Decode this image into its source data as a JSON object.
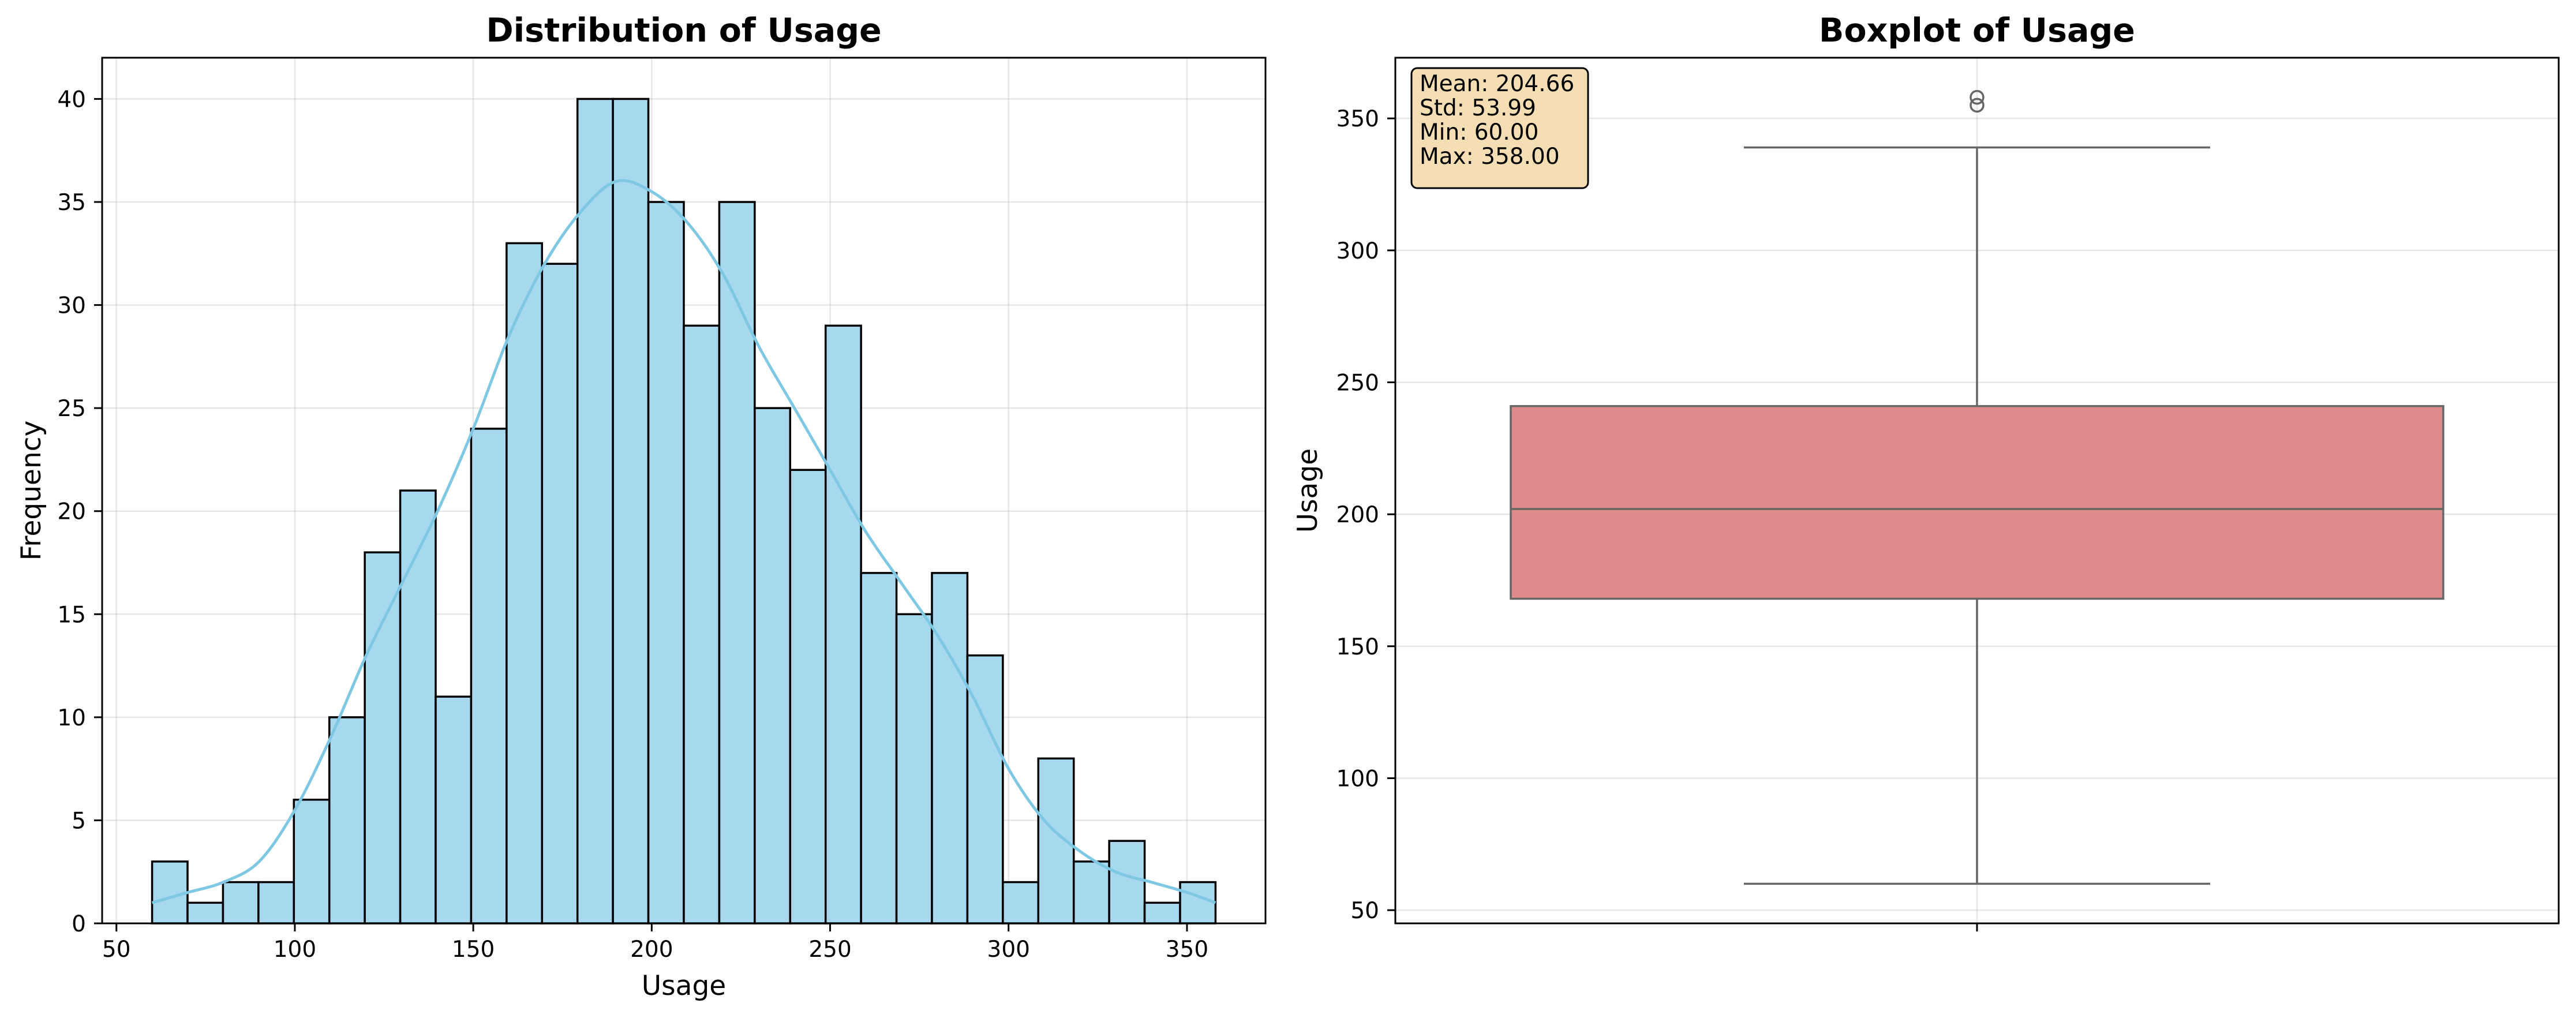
{
  "chart_data": [
    {
      "type": "histogram",
      "title": "Distribution of Usage",
      "xlabel": "Usage",
      "ylabel": "Frequency",
      "xlim": [
        46,
        372
      ],
      "ylim": [
        0,
        42
      ],
      "xticks": [
        50,
        100,
        150,
        200,
        250,
        300,
        350
      ],
      "yticks": [
        0,
        5,
        10,
        15,
        20,
        25,
        30,
        35,
        40
      ],
      "grid": true,
      "bar_color": "#a8d8ee",
      "edge_color": "#000000",
      "kde_color": "#7ec8e3",
      "bin_start": 60,
      "bin_width": 9.9333,
      "counts": [
        3,
        1,
        2,
        2,
        6,
        10,
        18,
        21,
        11,
        24,
        33,
        32,
        40,
        40,
        35,
        29,
        35,
        25,
        22,
        29,
        17,
        15,
        17,
        13,
        2,
        8,
        3,
        4,
        1,
        2
      ],
      "kde": {
        "x": [
          60,
          70,
          80,
          90,
          100,
          110,
          120,
          130,
          140,
          150,
          160,
          170,
          180,
          190,
          200,
          210,
          220,
          230,
          240,
          250,
          260,
          270,
          280,
          290,
          300,
          310,
          320,
          330,
          340,
          350,
          358
        ],
        "y": [
          1.0,
          1.5,
          2.0,
          3.0,
          5.5,
          9.0,
          13.0,
          16.5,
          20.0,
          24.0,
          28.5,
          32.0,
          34.5,
          36.0,
          35.5,
          34.0,
          31.5,
          28.0,
          25.0,
          22.0,
          19.0,
          16.5,
          14.0,
          11.0,
          7.5,
          5.0,
          3.5,
          2.5,
          2.0,
          1.5,
          1.0
        ]
      }
    },
    {
      "type": "boxplot",
      "title": "Boxplot of Usage",
      "xlabel": "",
      "ylabel": "Usage",
      "ylim": [
        45,
        373
      ],
      "yticks": [
        50,
        100,
        150,
        200,
        250,
        300,
        350
      ],
      "grid": true,
      "box_color": "#e08b8b",
      "line_color": "#666666",
      "q1": 168,
      "median": 202,
      "q3": 241,
      "whisker_low": 60,
      "whisker_high": 339,
      "outliers": [
        355,
        358
      ],
      "stats_box": {
        "lines": [
          "Mean: 204.66",
          "Std: 53.99",
          "Min: 60.00",
          "Max: 358.00"
        ],
        "placement": "top-left",
        "background": "#f5deb3"
      }
    }
  ]
}
